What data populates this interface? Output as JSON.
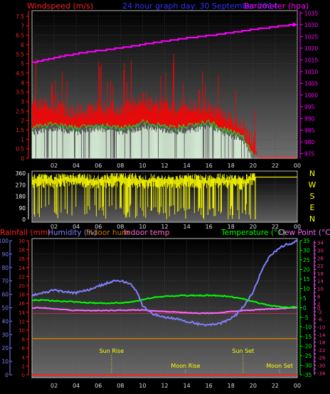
{
  "header": {
    "windspeed_label": "Windspeed (m/s)",
    "title": "24 hour graph day: 30 September 2014",
    "barometer_label": "Barometer (hpa)"
  },
  "lower_header": {
    "rainfall": "Rainfall (mm)",
    "humidity": "Humidity (%)",
    "indoor_hum": "Indoor hum",
    "indoor_temp": "Indoor temp",
    "temperature": "Temperature (°C)",
    "dew_point": "Dew Point (°C)"
  },
  "compass_labels": [
    "N",
    "W",
    "S",
    "E",
    "N"
  ],
  "colors": {
    "windspeed": "#ff0000",
    "gust": "#ff2020",
    "avg_wind": "#22dd22",
    "light_bars": "#ddf5dd",
    "barometer": "#ff00ff",
    "direction": "#ffff00",
    "rainfall": "#ff2020",
    "humidity": "#8080ff",
    "indoor_hum": "#cc7700",
    "indoor_temp": "#ff66cc",
    "temperature": "#00ff00",
    "dew_point": "#ff66ff",
    "axis_blue_text": "#3333ff"
  },
  "chart_data": [
    {
      "type": "bar",
      "title": "24 hour graph day: 30 September 2014",
      "xlabel": "",
      "ylabel_left": "Windspeed (m/s)",
      "ylabel_right": "Barometer (hpa)",
      "x_ticks": [
        "02",
        "04",
        "06",
        "08",
        "10",
        "12",
        "14",
        "16",
        "18",
        "20",
        "22",
        "00"
      ],
      "y_left_ticks": [
        0,
        0.5,
        1,
        1.5,
        2,
        2.5,
        3,
        3.5,
        4,
        4.5,
        5,
        5.5,
        6,
        6.5,
        7,
        7.5
      ],
      "y_left_tick_labels": [
        "0",
        "0.5",
        "1",
        "1.5",
        "2",
        "2.5",
        "3",
        "3.5",
        "4",
        "4.5",
        "5",
        "5.5",
        "6",
        "6.5",
        "7",
        "7.5"
      ],
      "y_right_ticks": [
        975,
        980,
        985,
        990,
        995,
        1000,
        1005,
        1010,
        1015,
        1020,
        1025,
        1030,
        1035
      ],
      "ylim_left": [
        0,
        7.8
      ],
      "ylim_right": [
        973,
        1036
      ],
      "series": [
        {
          "name": "Barometer",
          "axis": "right",
          "hours": [
            0,
            1,
            2,
            3,
            4,
            5,
            6,
            7,
            8,
            9,
            10,
            11,
            12,
            13,
            14,
            15,
            16,
            17,
            18,
            19,
            20,
            21,
            22,
            23,
            24
          ],
          "values": [
            1014,
            1014.8,
            1015.8,
            1016.8,
            1017.6,
            1018.4,
            1019,
            1019.4,
            1020.2,
            1020.8,
            1021.6,
            1022.3,
            1023,
            1023.7,
            1024.3,
            1024.8,
            1025.4,
            1026,
            1026.6,
            1027.3,
            1028,
            1028.6,
            1029.1,
            1029.7,
            1030
          ]
        },
        {
          "name": "Average windspeed",
          "axis": "left",
          "hours": [
            0,
            1,
            2,
            3,
            4,
            5,
            6,
            7,
            8,
            9,
            10,
            11,
            12,
            13,
            14,
            15,
            16,
            17,
            18,
            19,
            20
          ],
          "values": [
            1.6,
            1.7,
            1.8,
            1.7,
            1.6,
            1.7,
            1.8,
            1.7,
            1.6,
            1.7,
            1.9,
            1.8,
            1.7,
            1.6,
            1.7,
            1.8,
            1.9,
            1.6,
            1.4,
            1.2,
            0.2
          ]
        },
        {
          "name": "Windspeed",
          "axis": "left",
          "hours": [
            0,
            1,
            2,
            3,
            4,
            5,
            6,
            7,
            8,
            9,
            10,
            11,
            12,
            13,
            14,
            15,
            16,
            17,
            18,
            19,
            20,
            20.5,
            24
          ],
          "values": [
            2.5,
            3.0,
            2.6,
            2.5,
            2.4,
            2.5,
            2.6,
            2.5,
            2.4,
            2.8,
            3.0,
            2.7,
            2.8,
            2.6,
            2.8,
            2.6,
            2.7,
            2.3,
            2.0,
            1.6,
            0.8,
            0,
            0
          ]
        }
      ]
    },
    {
      "type": "scatter",
      "title": "",
      "xlabel": "",
      "ylabel": "",
      "y_ticks": [
        0,
        90,
        180,
        270,
        360
      ],
      "ylim": [
        0,
        360
      ],
      "x_ticks": [
        "02",
        "04",
        "06",
        "08",
        "10",
        "12",
        "14",
        "16",
        "18",
        "20",
        "22",
        "00"
      ],
      "series": [
        {
          "name": "Wind direction",
          "hours": [
            0,
            1,
            2,
            3,
            4,
            5,
            6,
            7,
            8,
            9,
            10,
            11,
            12,
            13,
            14,
            15,
            16,
            17,
            18,
            19,
            20
          ],
          "values": [
            300,
            310,
            300,
            320,
            315,
            305,
            300,
            310,
            320,
            315,
            300,
            310,
            305,
            300,
            310,
            305,
            300,
            310,
            300,
            290,
            330
          ]
        }
      ],
      "calm_line": {
        "from_hour": 20.2,
        "to_hour": 24,
        "value": 330
      }
    },
    {
      "type": "line",
      "title": "",
      "xlabel": "",
      "ylabel": "",
      "x_ticks": [
        "02",
        "04",
        "06",
        "08",
        "10",
        "12",
        "14",
        "16",
        "18",
        "20",
        "22",
        "00"
      ],
      "humidity_ticks": [
        0,
        10,
        20,
        30,
        40,
        50,
        60,
        70,
        80,
        90,
        100
      ],
      "rainfall_ticks": [
        0,
        2,
        4,
        6,
        8,
        10,
        12,
        14,
        16,
        18,
        20,
        22,
        24,
        26,
        28,
        30
      ],
      "temp_ticks": [
        -35,
        -30,
        -25,
        -20,
        -15,
        -10,
        -5,
        0,
        5,
        10,
        15,
        20,
        25,
        30,
        35
      ],
      "dew_ticks": [
        -34,
        -32,
        -30,
        -28,
        -26,
        -24,
        -22,
        -20,
        -18,
        -16,
        -14,
        -12,
        -10,
        -8,
        -6,
        -4,
        -2,
        0,
        2,
        4,
        6,
        8,
        10,
        12,
        14,
        16,
        18,
        20,
        22,
        24,
        26,
        28,
        30,
        32,
        34
      ],
      "ylim_humidity": [
        0,
        100
      ],
      "ylim_temp": [
        -35,
        35
      ],
      "series": [
        {
          "name": "Humidity",
          "axis": "humidity",
          "hours": [
            0,
            1,
            2,
            3,
            4,
            5,
            6,
            7,
            7.5,
            8,
            8.5,
            9,
            9.5,
            10,
            10.5,
            11,
            12,
            13,
            14,
            15,
            16,
            17,
            17.5,
            18,
            18.5,
            19,
            19.5,
            20,
            20.5,
            21,
            21.5,
            22,
            22.5,
            23,
            23.5,
            24
          ],
          "values": [
            59,
            61,
            63,
            62,
            61,
            63,
            66,
            69,
            70,
            70,
            69,
            67,
            62,
            52,
            48,
            45,
            43,
            42,
            40,
            38,
            37,
            38,
            40,
            42,
            45,
            50,
            55,
            62,
            72,
            82,
            88,
            92,
            95,
            97,
            98,
            100
          ]
        },
        {
          "name": "Temperature",
          "axis": "temp",
          "hours": [
            0,
            1,
            2,
            3,
            4,
            5,
            6,
            7,
            8,
            9,
            10,
            11,
            12,
            13,
            14,
            15,
            16,
            17,
            18,
            19,
            20,
            21,
            22,
            23,
            24
          ],
          "values": [
            4,
            4,
            3.6,
            3.4,
            3,
            2.6,
            2.4,
            2.4,
            2.6,
            3,
            4.2,
            5.4,
            6,
            6.2,
            6.4,
            6.4,
            6.5,
            6.3,
            5.8,
            4.8,
            3.2,
            1.8,
            0.8,
            0.2,
            0.4
          ]
        },
        {
          "name": "Dew Point",
          "axis": "temp",
          "hours": [
            0,
            1,
            2,
            3,
            4,
            5,
            6,
            7,
            8,
            9,
            10,
            11,
            12,
            13,
            14,
            15,
            16,
            17,
            18,
            19,
            20,
            21,
            22,
            23,
            24
          ],
          "values": [
            0,
            0,
            -0.6,
            -1,
            -1.4,
            -1.4,
            -1.5,
            -1.4,
            -1.3,
            -1.2,
            -1.2,
            -1.6,
            -2,
            -2.2,
            -2.6,
            -2.8,
            -2.8,
            -2.6,
            -2,
            -1.5,
            -1.2,
            -0.8,
            -0.5,
            -0.2,
            0
          ]
        },
        {
          "name": "Indoor temp",
          "axis": "temp",
          "hours": [
            0,
            24
          ],
          "values": [
            -3,
            -3
          ]
        },
        {
          "name": "Indoor hum",
          "axis": "humidity",
          "hours": [
            0,
            24
          ],
          "values": [
            27,
            27
          ]
        },
        {
          "name": "Rainfall",
          "axis": "rainfall",
          "hours": [
            0,
            24
          ],
          "values": [
            0,
            0
          ]
        }
      ],
      "events": [
        {
          "label": "Sun Rise",
          "hour": 7.2
        },
        {
          "label": "Moon Rise",
          "hour": 13.9
        },
        {
          "label": "Sun Set",
          "hour": 19.1
        },
        {
          "label": "Moon Set",
          "hour": 22.4
        }
      ]
    }
  ]
}
